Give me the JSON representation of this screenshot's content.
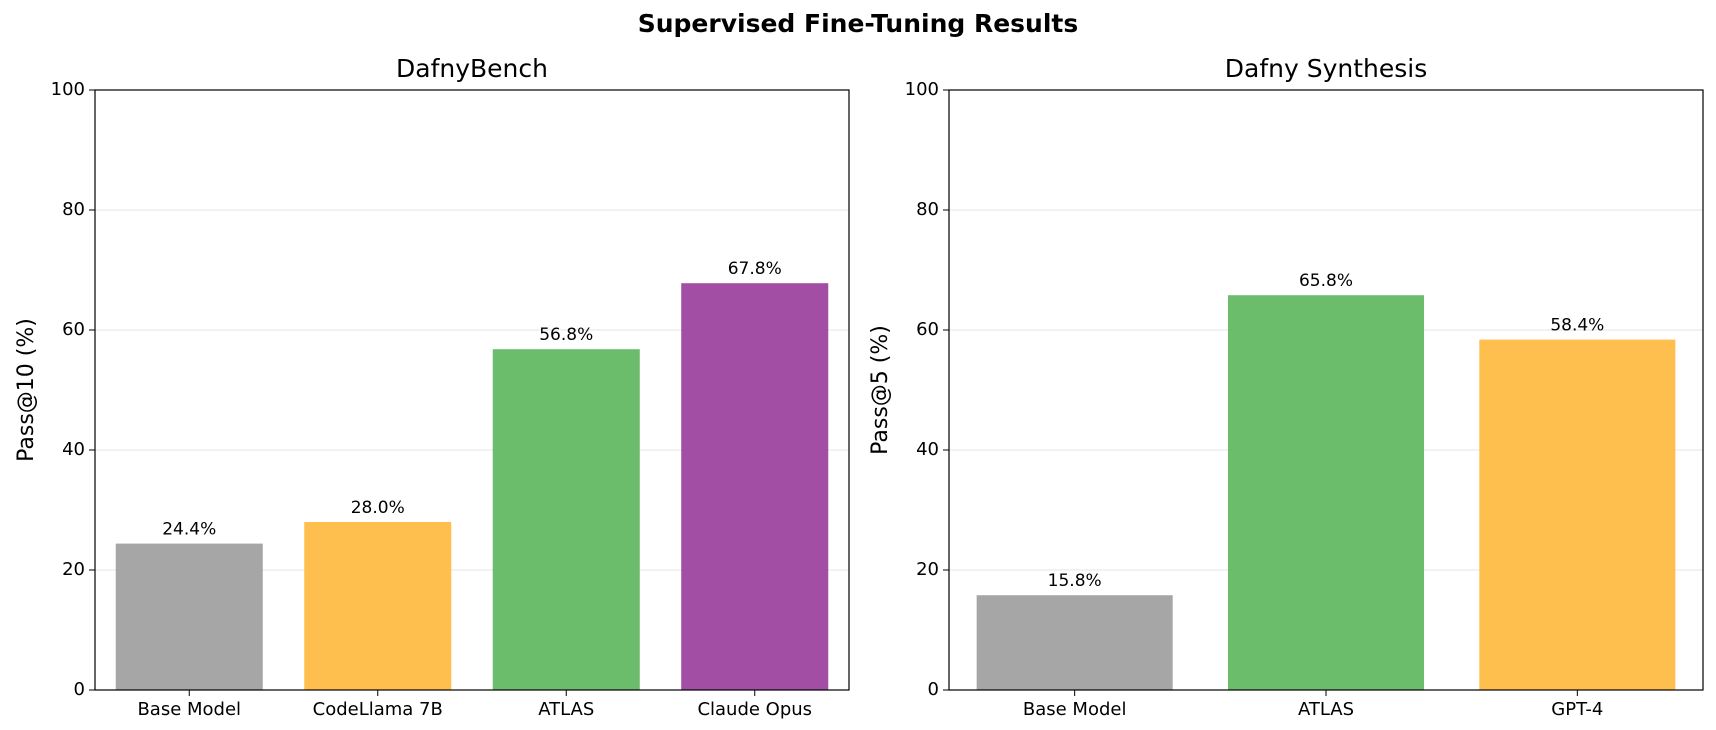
{
  "title": "Supervised Fine-Tuning Results",
  "chart_data": [
    {
      "type": "bar",
      "title": "DafnyBench",
      "y_label": "Pass@10 (%)",
      "categories": [
        "Base Model",
        "CodeLlama 7B",
        "ATLAS",
        "Claude Opus"
      ],
      "values": [
        24.4,
        28.0,
        56.8,
        67.8
      ],
      "value_labels": [
        "24.4%",
        "28.0%",
        "56.8%",
        "67.8%"
      ],
      "colors": [
        "#a6a6a6",
        "#ffbf4f",
        "#6bbd6b",
        "#a34ea5"
      ],
      "ylim": [
        0,
        100
      ],
      "yticks": [
        0,
        20,
        40,
        60,
        80,
        100
      ],
      "grid": true
    },
    {
      "type": "bar",
      "title": "Dafny Synthesis",
      "y_label": "Pass@5 (%)",
      "categories": [
        "Base Model",
        "ATLAS",
        "GPT-4"
      ],
      "values": [
        15.8,
        65.8,
        58.4
      ],
      "value_labels": [
        "15.8%",
        "65.8%",
        "58.4%"
      ],
      "colors": [
        "#a6a6a6",
        "#6bbd6b",
        "#ffbf4f"
      ],
      "ylim": [
        0,
        100
      ],
      "yticks": [
        0,
        20,
        40,
        60,
        80,
        100
      ],
      "grid": true
    }
  ]
}
